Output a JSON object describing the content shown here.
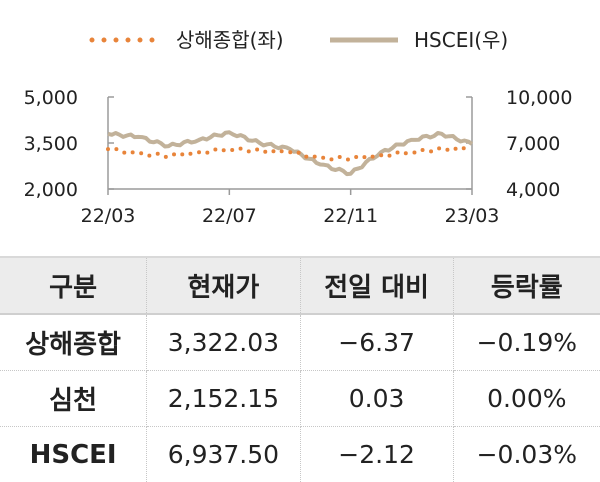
{
  "chart_data": {
    "type": "line",
    "x_ticks": [
      "22/03",
      "22/07",
      "22/11",
      "23/03"
    ],
    "left_axis": {
      "ticks": [
        "5,000",
        "3,500",
        "2,000"
      ],
      "ylim": [
        2000,
        5000
      ]
    },
    "right_axis": {
      "ticks": [
        "10,000",
        "7,000",
        "4,000"
      ],
      "ylim": [
        4000,
        10000
      ]
    },
    "legend": {
      "placement": "top-center"
    },
    "series": [
      {
        "name": "상해종합(좌)",
        "axis": "left",
        "color": "#e8843a",
        "style": "dotted",
        "x": [
          "22/03",
          "22/04",
          "22/05",
          "22/06",
          "22/07",
          "22/08",
          "22/09",
          "22/10",
          "22/11",
          "22/12",
          "23/01",
          "23/02",
          "23/03"
        ],
        "values": [
          3300,
          3150,
          3080,
          3200,
          3300,
          3250,
          3200,
          3000,
          3000,
          3100,
          3200,
          3300,
          3320
        ]
      },
      {
        "name": "HSCEI(우)",
        "axis": "right",
        "color": "#c2b29a",
        "style": "solid",
        "x": [
          "22/03",
          "22/04",
          "22/05",
          "22/06",
          "22/07",
          "22/08",
          "22/09",
          "22/10",
          "22/11",
          "22/12",
          "23/01",
          "23/02",
          "23/03"
        ],
        "values": [
          7600,
          7400,
          6800,
          7200,
          7700,
          7000,
          6600,
          5600,
          5000,
          6400,
          7200,
          7600,
          6940
        ]
      }
    ]
  },
  "table": {
    "headers": [
      "구분",
      "현재가",
      "전일 대비",
      "등락률"
    ],
    "rows": [
      [
        "상해종합",
        "3,322.03",
        "−6.37",
        "−0.19%"
      ],
      [
        "심천",
        "2,152.15",
        "0.03",
        "0.00%"
      ],
      [
        "HSCEI",
        "6,937.50",
        "−2.12",
        "−0.03%"
      ]
    ]
  }
}
